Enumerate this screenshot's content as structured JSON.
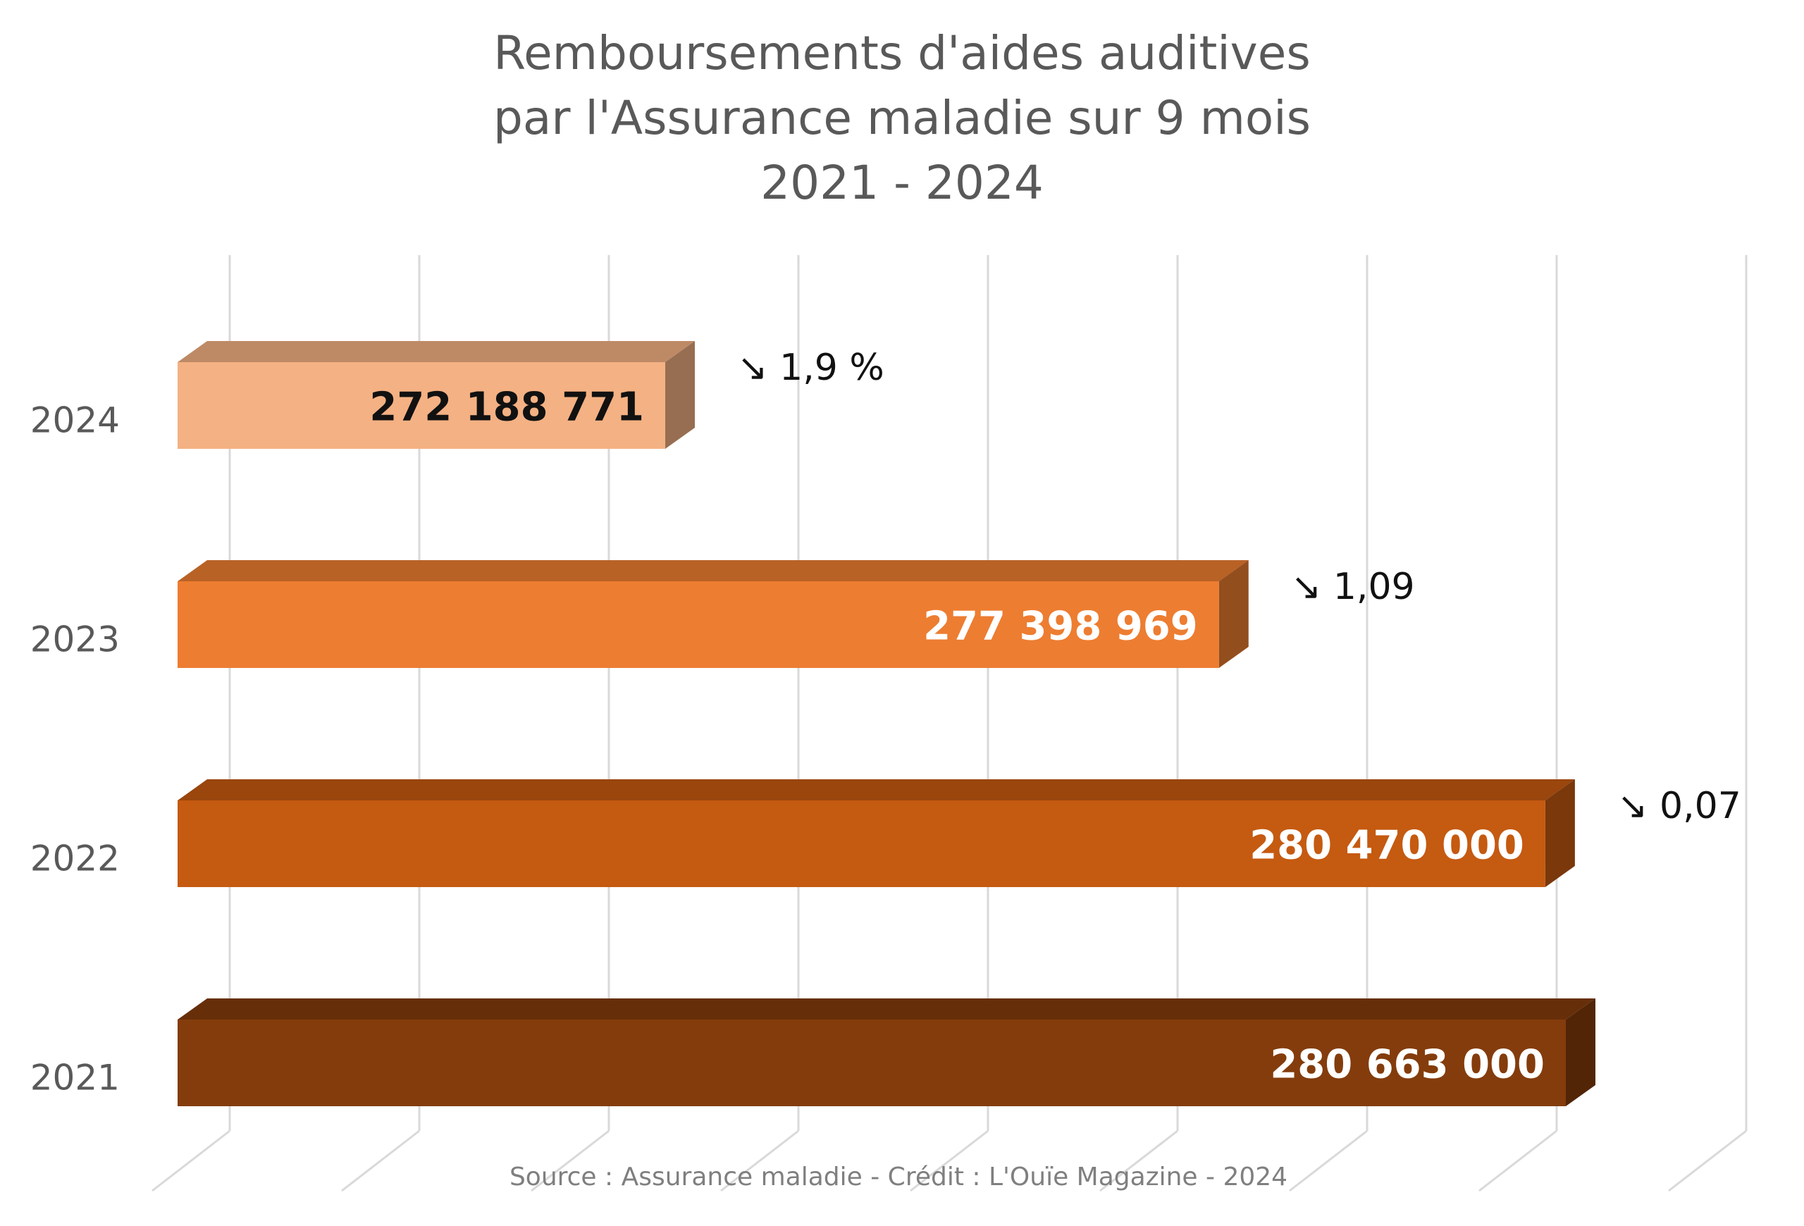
{
  "chart_data": {
    "type": "bar",
    "orientation": "horizontal",
    "style": "3d",
    "title_lines": [
      "Remboursements d'aides auditives",
      "par l'Assurance maladie sur 9 mois",
      "2021 - 2024"
    ],
    "categories": [
      "2024",
      "2023",
      "2022",
      "2021"
    ],
    "values": [
      272188771,
      277398969,
      280470000,
      280663000
    ],
    "value_labels": [
      "272 188 771",
      "277 398 969",
      "280 470 000",
      "280 663 000"
    ],
    "annotations": [
      "↘ 1,9 %",
      "↘ 1,09",
      "↘ 0,07",
      ""
    ],
    "colors": [
      "#F4B183",
      "#ED7D31",
      "#C55A11",
      "#843C0C"
    ],
    "label_colors": [
      "#111111",
      "#ffffff",
      "#ffffff",
      "#ffffff"
    ],
    "grid": true,
    "legend": "none",
    "source": "Source : Assurance maladie - Crédit : L'Ouïe Magazine - 2024"
  }
}
